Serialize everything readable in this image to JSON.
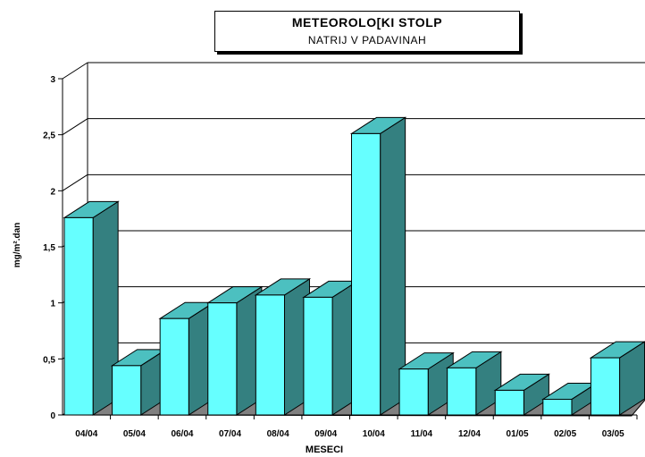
{
  "chart_data": {
    "type": "bar",
    "title": "METEOROLO[KI STOLP",
    "subtitle": "NATRIJ V PADAVINAH",
    "xlabel": "MESECI",
    "ylabel": "mg/m².dan",
    "ylim": [
      0,
      3
    ],
    "yticks": [
      "0",
      "0,5",
      "1",
      "1,5",
      "2",
      "2,5",
      "3"
    ],
    "grid": true,
    "categories": [
      "04/04",
      "05/04",
      "06/04",
      "07/04",
      "08/04",
      "09/04",
      "10/04",
      "11/04",
      "12/04",
      "01/05",
      "02/05",
      "03/05"
    ],
    "values": [
      1.76,
      0.44,
      0.86,
      1.0,
      1.07,
      1.05,
      2.51,
      0.41,
      0.42,
      0.22,
      0.14,
      0.51
    ],
    "colors": {
      "front": "#66ffff",
      "side": "#348080",
      "top": "#4cc0c0",
      "floor": "#808080"
    }
  }
}
